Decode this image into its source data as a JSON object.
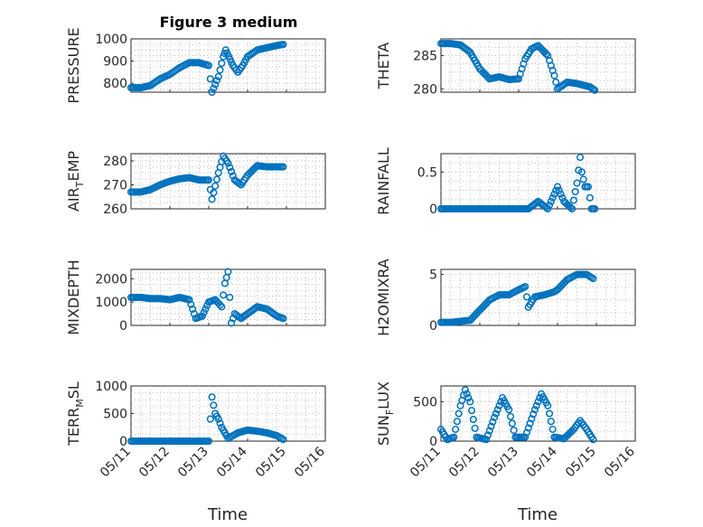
{
  "figure": {
    "title": "Figure 3 medium",
    "xlabel": "Time"
  },
  "chart_data": [
    {
      "type": "scatter",
      "ylabel": "PRESSURE",
      "ylim": [
        760,
        1000
      ],
      "yticks": [
        "800",
        "900",
        "1000"
      ],
      "xticks": [
        "05/11",
        "05/12",
        "05/13",
        "05/14",
        "05/15",
        "05/16"
      ],
      "grid": true,
      "points": [
        [
          "05/11 00:00",
          780
        ],
        [
          "05/11 06:00",
          780
        ],
        [
          "05/11 12:00",
          790
        ],
        [
          "05/11 18:00",
          820
        ],
        [
          "05/12 00:00",
          840
        ],
        [
          "05/12 06:00",
          870
        ],
        [
          "05/12 12:00",
          893
        ],
        [
          "05/12 18:00",
          893
        ],
        [
          "05/13 00:00",
          880
        ],
        [
          "05/13 02:00",
          760
        ],
        [
          "05/13 06:00",
          830
        ],
        [
          "05/13 09:00",
          920
        ],
        [
          "05/13 10:30",
          950
        ],
        [
          "05/13 15:00",
          880
        ],
        [
          "05/13 18:00",
          850
        ],
        [
          "05/13 21:00",
          880
        ],
        [
          "05/14 00:00",
          920
        ],
        [
          "05/14 06:00",
          950
        ],
        [
          "05/14 12:00",
          960
        ],
        [
          "05/14 18:00",
          970
        ],
        [
          "05/14 22:00",
          975
        ]
      ]
    },
    {
      "type": "scatter",
      "ylabel": "THETA",
      "ylim": [
        279.5,
        287.5
      ],
      "yticks": [
        "280",
        "285"
      ],
      "xticks": [
        "05/11",
        "05/12",
        "05/13",
        "05/14",
        "05/15",
        "05/16"
      ],
      "grid": true,
      "points": [
        [
          "05/11 00:00",
          286.8
        ],
        [
          "05/11 06:00",
          286.8
        ],
        [
          "05/11 12:00",
          286.6
        ],
        [
          "05/11 18:00",
          285.5
        ],
        [
          "05/12 00:00",
          283
        ],
        [
          "05/12 06:00",
          281.5
        ],
        [
          "05/12 12:00",
          281.8
        ],
        [
          "05/12 18:00",
          281.4
        ],
        [
          "05/13 00:00",
          281.5
        ],
        [
          "05/13 04:00",
          284.5
        ],
        [
          "05/13 08:00",
          286
        ],
        [
          "05/13 12:00",
          286.5
        ],
        [
          "05/13 18:00",
          285
        ],
        [
          "05/13 22:00",
          282
        ],
        [
          "05/14 00:00",
          280
        ],
        [
          "05/14 06:00",
          281
        ],
        [
          "05/14 12:00",
          280.8
        ],
        [
          "05/14 20:00",
          280.3
        ],
        [
          "05/14 23:00",
          279.8
        ]
      ]
    },
    {
      "type": "scatter",
      "ylabel": "AIR_TEMP",
      "ylim": [
        260,
        283
      ],
      "yticks": [
        "260",
        "270",
        "280"
      ],
      "xticks": [
        "05/11",
        "05/12",
        "05/13",
        "05/14",
        "05/15",
        "05/16"
      ],
      "grid": true,
      "points": [
        [
          "05/11 00:00",
          267
        ],
        [
          "05/11 06:00",
          267
        ],
        [
          "05/11 12:00",
          268
        ],
        [
          "05/11 18:00",
          270
        ],
        [
          "05/12 00:00",
          271.5
        ],
        [
          "05/12 06:00",
          272.5
        ],
        [
          "05/12 12:00",
          273
        ],
        [
          "05/12 18:00",
          272
        ],
        [
          "05/13 00:00",
          272
        ],
        [
          "05/13 02:00",
          264
        ],
        [
          "05/13 06:00",
          275
        ],
        [
          "05/13 09:00",
          282
        ],
        [
          "05/13 12:00",
          279
        ],
        [
          "05/13 16:00",
          272
        ],
        [
          "05/13 20:00",
          270
        ],
        [
          "05/14 00:00",
          274
        ],
        [
          "05/14 06:00",
          278
        ],
        [
          "05/14 12:00",
          277.5
        ],
        [
          "05/14 18:00",
          277.5
        ],
        [
          "05/14 22:00",
          277.5
        ]
      ]
    },
    {
      "type": "scatter",
      "ylabel": "RAINFALL",
      "ylim": [
        0,
        0.75
      ],
      "yticks": [
        "0",
        "0.5"
      ],
      "xticks": [
        "05/11",
        "05/12",
        "05/13",
        "05/14",
        "05/15",
        "05/16"
      ],
      "grid": true,
      "points": [
        [
          "05/11 00:00",
          0
        ],
        [
          "05/11 06:00",
          0
        ],
        [
          "05/11 12:00",
          0
        ],
        [
          "05/11 18:00",
          0
        ],
        [
          "05/12 00:00",
          0
        ],
        [
          "05/12 06:00",
          0
        ],
        [
          "05/12 12:00",
          0
        ],
        [
          "05/12 18:00",
          0
        ],
        [
          "05/13 00:00",
          0
        ],
        [
          "05/13 06:00",
          0
        ],
        [
          "05/13 12:00",
          0.1
        ],
        [
          "05/13 18:00",
          0
        ],
        [
          "05/14 00:00",
          0.3
        ],
        [
          "05/14 04:00",
          0.1
        ],
        [
          "05/14 09:00",
          0
        ],
        [
          "05/14 12:00",
          0.35
        ],
        [
          "05/14 14:00",
          0.7
        ],
        [
          "05/14 15:00",
          0.5
        ],
        [
          "05/14 17:00",
          0.3
        ],
        [
          "05/14 19:00",
          0.3
        ],
        [
          "05/14 21:00",
          0
        ],
        [
          "05/14 23:00",
          0
        ]
      ]
    },
    {
      "type": "scatter",
      "ylabel": "MIXDEPTH",
      "ylim": [
        0,
        2400
      ],
      "yticks": [
        "0",
        "1000",
        "2000"
      ],
      "xticks": [
        "05/11",
        "05/12",
        "05/13",
        "05/14",
        "05/15",
        "05/16"
      ],
      "grid": true,
      "points": [
        [
          "05/11 00:00",
          1200
        ],
        [
          "05/11 06:00",
          1200
        ],
        [
          "05/11 12:00",
          1150
        ],
        [
          "05/11 18:00",
          1150
        ],
        [
          "05/12 00:00",
          1100
        ],
        [
          "05/12 06:00",
          1200
        ],
        [
          "05/12 12:00",
          1100
        ],
        [
          "05/12 16:00",
          300
        ],
        [
          "05/12 20:00",
          400
        ],
        [
          "05/13 00:00",
          1000
        ],
        [
          "05/13 04:00",
          1100
        ],
        [
          "05/13 08:00",
          800
        ],
        [
          "05/13 10:00",
          1800
        ],
        [
          "05/13 12:00",
          2300
        ],
        [
          "05/13 14:00",
          100
        ],
        [
          "05/13 16:00",
          500
        ],
        [
          "05/13 20:00",
          300
        ],
        [
          "05/14 00:00",
          500
        ],
        [
          "05/14 06:00",
          800
        ],
        [
          "05/14 12:00",
          700
        ],
        [
          "05/14 18:00",
          400
        ],
        [
          "05/14 22:00",
          300
        ]
      ]
    },
    {
      "type": "scatter",
      "ylabel": "H2OMIXRA",
      "ylim": [
        0,
        5.5
      ],
      "yticks": [
        "0",
        "5"
      ],
      "xticks": [
        "05/11",
        "05/12",
        "05/13",
        "05/14",
        "05/15",
        "05/16"
      ],
      "grid": true,
      "points": [
        [
          "05/11 00:00",
          0.3
        ],
        [
          "05/11 06:00",
          0.3
        ],
        [
          "05/11 12:00",
          0.4
        ],
        [
          "05/11 18:00",
          0.5
        ],
        [
          "05/12 00:00",
          1.5
        ],
        [
          "05/12 06:00",
          2.5
        ],
        [
          "05/12 12:00",
          3
        ],
        [
          "05/12 18:00",
          3
        ],
        [
          "05/13 00:00",
          3.5
        ],
        [
          "05/13 04:00",
          3.8
        ],
        [
          "05/13 06:00",
          1.8
        ],
        [
          "05/13 10:00",
          2.8
        ],
        [
          "05/13 16:00",
          3
        ],
        [
          "05/13 22:00",
          3.3
        ],
        [
          "05/14 00:00",
          3.5
        ],
        [
          "05/14 06:00",
          4.5
        ],
        [
          "05/14 12:00",
          5
        ],
        [
          "05/14 18:00",
          5
        ],
        [
          "05/14 22:00",
          4.6
        ]
      ]
    },
    {
      "type": "scatter",
      "ylabel": "TERR_MSL",
      "ylim": [
        0,
        1000
      ],
      "yticks": [
        "0",
        "500",
        "1000"
      ],
      "xticks": [
        "05/11",
        "05/12",
        "05/13",
        "05/14",
        "05/15",
        "05/16"
      ],
      "grid": true,
      "points": [
        [
          "05/11 00:00",
          0
        ],
        [
          "05/11 06:00",
          0
        ],
        [
          "05/11 12:00",
          0
        ],
        [
          "05/11 18:00",
          0
        ],
        [
          "05/12 00:00",
          0
        ],
        [
          "05/12 06:00",
          0
        ],
        [
          "05/12 12:00",
          0
        ],
        [
          "05/12 18:00",
          0
        ],
        [
          "05/13 00:00",
          0
        ],
        [
          "05/13 02:00",
          800
        ],
        [
          "05/13 04:00",
          500
        ],
        [
          "05/13 06:00",
          400
        ],
        [
          "05/13 08:00",
          250
        ],
        [
          "05/13 12:00",
          50
        ],
        [
          "05/13 18:00",
          150
        ],
        [
          "05/14 00:00",
          200
        ],
        [
          "05/14 06:00",
          180
        ],
        [
          "05/14 12:00",
          150
        ],
        [
          "05/14 18:00",
          100
        ],
        [
          "05/14 22:00",
          30
        ]
      ]
    },
    {
      "type": "scatter",
      "ylabel": "SUN_FLUX",
      "ylim": [
        0,
        700
      ],
      "yticks": [
        "0",
        "500"
      ],
      "xticks": [
        "05/11",
        "05/12",
        "05/13",
        "05/14",
        "05/15",
        "05/16"
      ],
      "grid": true,
      "points": [
        [
          "05/11 00:00",
          150
        ],
        [
          "05/11 04:00",
          20
        ],
        [
          "05/11 08:00",
          50
        ],
        [
          "05/11 12:00",
          450
        ],
        [
          "05/11 15:00",
          650
        ],
        [
          "05/11 18:00",
          500
        ],
        [
          "05/11 22:00",
          50
        ],
        [
          "05/12 04:00",
          20
        ],
        [
          "05/12 09:00",
          300
        ],
        [
          "05/12 14:00",
          550
        ],
        [
          "05/12 18:00",
          400
        ],
        [
          "05/12 22:00",
          50
        ],
        [
          "05/13 04:00",
          50
        ],
        [
          "05/13 10:00",
          400
        ],
        [
          "05/13 14:00",
          600
        ],
        [
          "05/13 18:00",
          450
        ],
        [
          "05/13 22:00",
          50
        ],
        [
          "05/14 04:00",
          30
        ],
        [
          "05/14 10:00",
          150
        ],
        [
          "05/14 14:00",
          260
        ],
        [
          "05/14 18:00",
          150
        ],
        [
          "05/14 22:00",
          20
        ]
      ]
    }
  ]
}
